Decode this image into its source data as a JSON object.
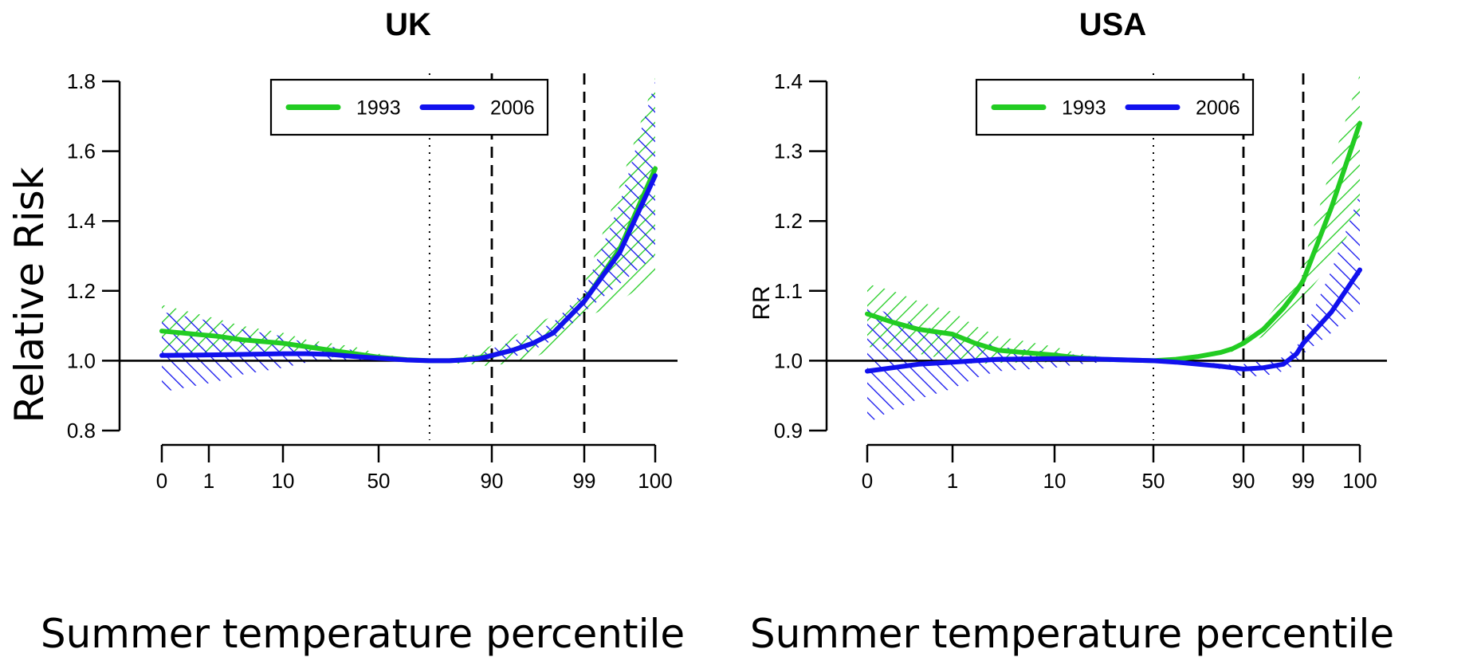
{
  "chart_data": [
    {
      "type": "line",
      "title": "UK",
      "ylabel": "Relative Risk",
      "xlabel": "Summer temperature percentile",
      "x_ticks": [
        "0",
        "1",
        "10",
        "50",
        "90",
        "99",
        "100"
      ],
      "y_ticks": [
        "0.8",
        "1.0",
        "1.2",
        "1.4",
        "1.6",
        "1.8"
      ],
      "ylim": [
        0.8,
        1.8
      ],
      "reference_line": 1.0,
      "vlines": [
        {
          "at": "68",
          "style": "dotted"
        },
        {
          "at": "90",
          "style": "dashed"
        },
        {
          "at": "99",
          "style": "dashed"
        }
      ],
      "legend": {
        "position": "top-center",
        "entries": [
          "1993",
          "2006"
        ]
      },
      "series": [
        {
          "name": "1993",
          "color": "#22cc22",
          "x": [
            0,
            2,
            5,
            10,
            20,
            30,
            40,
            50,
            60,
            68,
            75,
            80,
            85,
            88,
            90,
            92,
            94,
            96,
            97,
            98,
            99,
            99.5,
            100
          ],
          "values": [
            1.085,
            1.07,
            1.06,
            1.05,
            1.04,
            1.03,
            1.02,
            1.01,
            1.003,
            1.0,
            1.0,
            1.003,
            1.008,
            1.012,
            1.015,
            1.03,
            1.05,
            1.08,
            1.11,
            1.14,
            1.17,
            1.32,
            1.55
          ],
          "lower": [
            1.02,
            1.02,
            1.02,
            1.02,
            1.015,
            1.01,
            1.005,
            1.0,
            0.998,
            1.0,
            0.995,
            0.99,
            0.99,
            0.985,
            0.985,
            0.995,
            1.005,
            1.04,
            1.07,
            1.1,
            1.12,
            1.17,
            1.24
          ],
          "upper": [
            1.16,
            1.12,
            1.1,
            1.08,
            1.06,
            1.05,
            1.04,
            1.02,
            1.008,
            1.0,
            1.005,
            1.015,
            1.025,
            1.035,
            1.045,
            1.07,
            1.1,
            1.13,
            1.16,
            1.19,
            1.22,
            1.5,
            1.81
          ]
        },
        {
          "name": "2006",
          "color": "#1111ee",
          "x": [
            0,
            2,
            5,
            10,
            20,
            30,
            40,
            50,
            60,
            68,
            75,
            80,
            85,
            88,
            90,
            92,
            94,
            96,
            97,
            98,
            99,
            99.5,
            100
          ],
          "values": [
            1.015,
            1.017,
            1.018,
            1.02,
            1.02,
            1.018,
            1.012,
            1.007,
            1.002,
            1.0,
            1.0,
            1.002,
            1.006,
            1.01,
            1.015,
            1.03,
            1.05,
            1.08,
            1.11,
            1.14,
            1.17,
            1.31,
            1.53
          ],
          "lower": [
            0.91,
            0.94,
            0.96,
            0.98,
            0.995,
            1.0,
            1.0,
            0.998,
            0.998,
            1.0,
            0.998,
            0.996,
            0.997,
            0.998,
            0.998,
            1.01,
            1.03,
            1.06,
            1.09,
            1.11,
            1.14,
            1.22,
            1.3
          ],
          "upper": [
            1.14,
            1.11,
            1.09,
            1.07,
            1.05,
            1.04,
            1.03,
            1.015,
            1.006,
            1.0,
            1.004,
            1.01,
            1.02,
            1.025,
            1.035,
            1.055,
            1.08,
            1.11,
            1.14,
            1.17,
            1.2,
            1.45,
            1.8
          ]
        }
      ]
    },
    {
      "type": "line",
      "title": "USA",
      "ylabel": "RR",
      "xlabel": "Summer temperature percentile",
      "x_ticks": [
        "0",
        "1",
        "10",
        "50",
        "90",
        "99",
        "100"
      ],
      "y_ticks": [
        "0.9",
        "1.0",
        "1.1",
        "1.2",
        "1.3",
        "1.4"
      ],
      "ylim": [
        0.9,
        1.4
      ],
      "reference_line": 1.0,
      "vlines": [
        {
          "at": "50",
          "style": "dotted"
        },
        {
          "at": "90",
          "style": "dashed"
        },
        {
          "at": "99",
          "style": "dashed"
        }
      ],
      "legend": {
        "position": "top-center",
        "entries": [
          "1993",
          "2006"
        ]
      },
      "series": [
        {
          "name": "1993",
          "color": "#22cc22",
          "x": [
            0,
            0.3,
            0.6,
            1,
            3,
            5,
            10,
            20,
            30,
            50,
            60,
            70,
            80,
            85,
            90,
            93,
            96,
            98,
            99,
            99.5,
            100
          ],
          "values": [
            1.067,
            1.055,
            1.045,
            1.038,
            1.025,
            1.015,
            1.008,
            1.004,
            1.002,
            1.0,
            1.002,
            1.006,
            1.012,
            1.017,
            1.025,
            1.045,
            1.075,
            1.1,
            1.115,
            1.22,
            1.34
          ],
          "lower": [
            1.02,
            1.015,
            1.01,
            1.0,
            0.995,
            0.997,
            0.998,
            0.999,
            1.0,
            1.0,
            1.001,
            1.004,
            1.009,
            1.013,
            1.02,
            1.035,
            1.06,
            1.08,
            1.09,
            1.14,
            1.21
          ],
          "upper": [
            1.11,
            1.1,
            1.085,
            1.07,
            1.05,
            1.035,
            1.02,
            1.01,
            1.005,
            1.0,
            1.003,
            1.008,
            1.015,
            1.022,
            1.03,
            1.055,
            1.09,
            1.12,
            1.14,
            1.28,
            1.41
          ]
        },
        {
          "name": "2006",
          "color": "#1111ee",
          "x": [
            0,
            0.3,
            0.6,
            1,
            3,
            5,
            10,
            20,
            30,
            50,
            60,
            70,
            80,
            85,
            90,
            93,
            96,
            98,
            99,
            99.5,
            100
          ],
          "values": [
            0.985,
            0.99,
            0.995,
            0.998,
            1.0,
            1.002,
            1.003,
            1.003,
            1.002,
            1.0,
            0.998,
            0.995,
            0.992,
            0.99,
            0.988,
            0.99,
            0.995,
            1.01,
            1.025,
            1.07,
            1.13
          ],
          "lower": [
            0.91,
            0.93,
            0.945,
            0.96,
            0.975,
            0.985,
            0.99,
            0.995,
            0.998,
            1.0,
            0.996,
            0.993,
            0.988,
            0.982,
            0.978,
            0.978,
            0.985,
            0.995,
            1.01,
            1.04,
            1.08
          ],
          "upper": [
            1.08,
            1.065,
            1.05,
            1.04,
            1.03,
            1.02,
            1.012,
            1.008,
            1.005,
            1.0,
            1.0,
            0.998,
            0.996,
            0.995,
            0.995,
            1.0,
            1.005,
            1.02,
            1.04,
            1.13,
            1.24
          ]
        }
      ]
    }
  ]
}
